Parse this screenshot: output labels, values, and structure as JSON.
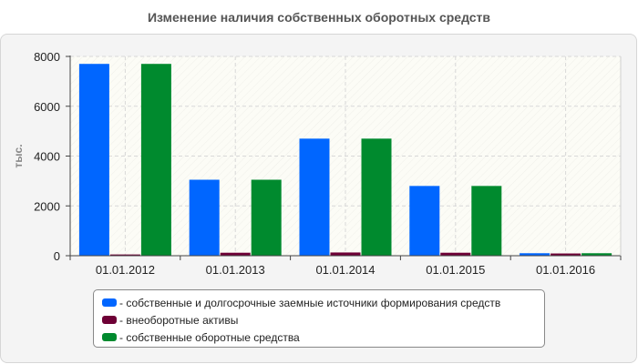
{
  "chart_data": {
    "type": "bar",
    "title": "Изменение наличия собственных оборотных средств",
    "ylabel": "тыс.",
    "xlabel": "",
    "ylim": [
      0,
      8000
    ],
    "yticks": [
      "0",
      "2000",
      "4000",
      "6000",
      "8000"
    ],
    "grid": true,
    "legend_position": "bottom",
    "categories": [
      "01.01.2012",
      "01.01.2013",
      "01.01.2014",
      "01.01.2015",
      "01.01.2016"
    ],
    "series": [
      {
        "name": "- собственные и долгосрочные заемные источники формирования средств",
        "color": "#0066ff",
        "values": [
          7700,
          3050,
          4700,
          2800,
          100
        ]
      },
      {
        "name": "- внеоборотные активы",
        "color": "#6e0036",
        "values": [
          50,
          120,
          130,
          120,
          90
        ]
      },
      {
        "name": "- собственные оборотные средства",
        "color": "#008a2e",
        "values": [
          7700,
          3050,
          4700,
          2800,
          100
        ]
      }
    ]
  }
}
